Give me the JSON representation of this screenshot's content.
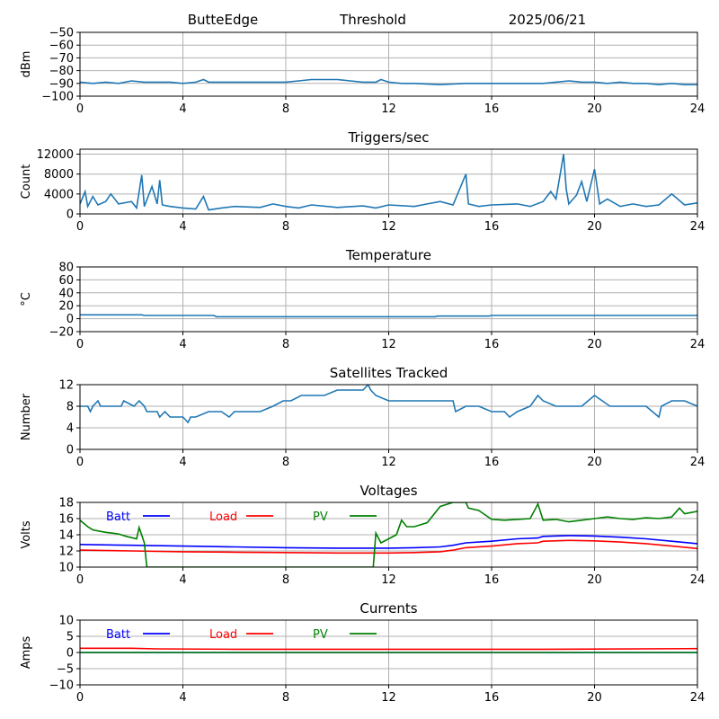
{
  "header": {
    "station": "ButteEdge",
    "plot": "Threshold",
    "date": "2025/06/21"
  },
  "colors": {
    "primary": "#1f77b4",
    "batt": "#0000ff",
    "load": "#ff0000",
    "pv": "#008000",
    "grid": "#b0b0b0"
  },
  "chart_data": [
    {
      "id": "threshold",
      "type": "line",
      "title": "",
      "ylabel": "dBm",
      "xlim": [
        0,
        24
      ],
      "xticks": [
        0,
        4,
        8,
        12,
        16,
        20,
        24
      ],
      "ylim": [
        -100,
        -50
      ],
      "yticks": [
        -100,
        -90,
        -80,
        -70,
        -60,
        -50
      ],
      "grid": true,
      "series": [
        {
          "color_key": "primary",
          "x": [
            0,
            0.5,
            1,
            1.5,
            2,
            2.5,
            3,
            3.5,
            4,
            4.5,
            4.8,
            5,
            5.5,
            6,
            7,
            8,
            8.5,
            9,
            10,
            10.5,
            11,
            11.5,
            11.7,
            12,
            12.5,
            13,
            14,
            15,
            16,
            17,
            18,
            18.5,
            19,
            19.5,
            20,
            20.5,
            21,
            21.5,
            22,
            22.5,
            23,
            23.5,
            24
          ],
          "y": [
            -89,
            -90,
            -89,
            -90,
            -88,
            -89,
            -89,
            -89,
            -90,
            -89,
            -87,
            -89,
            -89,
            -89,
            -89,
            -89,
            -88,
            -87,
            -87,
            -88,
            -89,
            -89,
            -87,
            -89,
            -90,
            -90,
            -91,
            -90,
            -90,
            -90,
            -90,
            -89,
            -88,
            -89,
            -89,
            -90,
            -89,
            -90,
            -90,
            -91,
            -90,
            -91,
            -91
          ]
        }
      ]
    },
    {
      "id": "triggers",
      "type": "line",
      "title": "Triggers/sec",
      "ylabel": "Count",
      "xlim": [
        0,
        24
      ],
      "xticks": [
        0,
        4,
        8,
        12,
        16,
        20,
        24
      ],
      "ylim": [
        0,
        13000
      ],
      "yticks": [
        0,
        4000,
        8000,
        12000
      ],
      "grid": true,
      "series": [
        {
          "color_key": "primary",
          "x": [
            0,
            0.2,
            0.3,
            0.5,
            0.7,
            1,
            1.2,
            1.5,
            2,
            2.2,
            2.4,
            2.5,
            2.8,
            3,
            3.1,
            3.2,
            3.5,
            4,
            4.5,
            4.8,
            5,
            5.5,
            6,
            7,
            7.5,
            8,
            8.5,
            9,
            10,
            11,
            11.5,
            12,
            13,
            13.5,
            14,
            14.5,
            15,
            15.1,
            15.5,
            16,
            17,
            17.5,
            18,
            18.3,
            18.5,
            18.8,
            18.9,
            19,
            19.3,
            19.5,
            19.7,
            20,
            20.2,
            20.5,
            21,
            21.5,
            22,
            22.5,
            23,
            23.5,
            24
          ],
          "y": [
            2000,
            4500,
            1500,
            3500,
            1800,
            2500,
            4000,
            2000,
            2500,
            1200,
            7800,
            1500,
            5500,
            2000,
            6800,
            1800,
            1500,
            1200,
            1000,
            3500,
            800,
            1200,
            1500,
            1300,
            2000,
            1500,
            1200,
            1800,
            1300,
            1600,
            1200,
            1800,
            1500,
            2000,
            2500,
            1800,
            8000,
            2000,
            1500,
            1800,
            2000,
            1500,
            2500,
            4500,
            3000,
            12000,
            5000,
            2000,
            3800,
            6500,
            2500,
            9000,
            2000,
            3000,
            1500,
            2000,
            1500,
            1800,
            4000,
            1800,
            2200
          ]
        }
      ]
    },
    {
      "id": "temperature",
      "type": "line",
      "title": "Temperature",
      "ylabel": "°C",
      "xlim": [
        0,
        24
      ],
      "xticks": [
        0,
        4,
        8,
        12,
        16,
        20,
        24
      ],
      "ylim": [
        -20,
        80
      ],
      "yticks": [
        -20,
        0,
        20,
        40,
        60,
        80
      ],
      "grid": true,
      "series": [
        {
          "color_key": "primary",
          "x": [
            0,
            2.4,
            2.5,
            5.2,
            5.3,
            13.8,
            13.9,
            15.9,
            16,
            24
          ],
          "y": [
            6,
            6,
            5,
            5,
            3,
            3,
            4,
            4,
            5,
            5
          ]
        }
      ]
    },
    {
      "id": "satellites",
      "type": "line",
      "title": "Satellites Tracked",
      "ylabel": "Number",
      "xlim": [
        0,
        24
      ],
      "xticks": [
        0,
        4,
        8,
        12,
        16,
        20,
        24
      ],
      "ylim": [
        0,
        12
      ],
      "yticks": [
        0,
        4,
        8,
        12
      ],
      "grid": true,
      "series": [
        {
          "color_key": "primary",
          "x": [
            0,
            0.3,
            0.4,
            0.5,
            0.7,
            0.8,
            1.6,
            1.7,
            2.1,
            2.3,
            2.5,
            2.6,
            3.0,
            3.1,
            3.3,
            3.5,
            3.8,
            4.0,
            4.2,
            4.3,
            4.5,
            5,
            5.5,
            5.8,
            6,
            7,
            7.5,
            7.9,
            8.2,
            8.6,
            9,
            9.5,
            10,
            10.5,
            11,
            11.2,
            11.3,
            11.5,
            12,
            12.5,
            13,
            14,
            14.5,
            14.6,
            15,
            15.5,
            16,
            16.5,
            16.7,
            17,
            17.5,
            17.8,
            18,
            18.5,
            19,
            19.5,
            20,
            20.3,
            20.6,
            21,
            22,
            22.5,
            22.6,
            23,
            23.5,
            24
          ],
          "y": [
            8,
            8,
            7,
            8,
            9,
            8,
            8,
            9,
            8,
            9,
            8,
            7,
            7,
            6,
            7,
            6,
            6,
            6,
            5,
            6,
            6,
            7,
            7,
            6,
            7,
            7,
            8,
            9,
            9,
            10,
            10,
            10,
            11,
            11,
            11,
            12,
            11,
            10,
            9,
            9,
            9,
            9,
            9,
            7,
            8,
            8,
            7,
            7,
            6,
            7,
            8,
            10,
            9,
            8,
            8,
            8,
            10,
            9,
            8,
            8,
            8,
            6,
            8,
            9,
            9,
            8
          ]
        }
      ]
    },
    {
      "id": "voltages",
      "type": "line",
      "title": "Voltages",
      "ylabel": "Volts",
      "xlim": [
        0,
        24
      ],
      "xticks": [
        0,
        4,
        8,
        12,
        16,
        20,
        24
      ],
      "ylim": [
        10,
        18
      ],
      "yticks": [
        10,
        12,
        14,
        16,
        18
      ],
      "grid": true,
      "series": [
        {
          "name": "Batt",
          "color_key": "batt",
          "x": [
            0,
            2,
            4,
            6,
            8,
            10,
            12,
            13,
            14,
            14.5,
            15,
            16,
            17,
            17.8,
            18,
            19,
            20,
            21,
            22,
            23,
            24
          ],
          "y": [
            12.8,
            12.7,
            12.6,
            12.5,
            12.4,
            12.35,
            12.35,
            12.4,
            12.5,
            12.7,
            13.0,
            13.2,
            13.5,
            13.6,
            13.8,
            13.9,
            13.85,
            13.7,
            13.5,
            13.2,
            12.9
          ]
        },
        {
          "name": "Load",
          "color_key": "load",
          "x": [
            0,
            2,
            4,
            6,
            8,
            10,
            12,
            13,
            14,
            14.5,
            15,
            16,
            17,
            17.8,
            18,
            19,
            20,
            21,
            22,
            23,
            24
          ],
          "y": [
            12.1,
            12.0,
            11.9,
            11.85,
            11.8,
            11.75,
            11.75,
            11.8,
            11.9,
            12.1,
            12.4,
            12.6,
            12.9,
            13.0,
            13.2,
            13.3,
            13.25,
            13.1,
            12.9,
            12.6,
            12.3
          ]
        },
        {
          "name": "PV",
          "color_key": "pv",
          "x": [
            0,
            0.3,
            0.5,
            1,
            1.5,
            1.8,
            2.2,
            2.3,
            2.5,
            2.6,
            11.4,
            11.5,
            11.7,
            12,
            12.3,
            12.5,
            12.7,
            13,
            13.5,
            14,
            14.5,
            15,
            15.1,
            15.5,
            16,
            16.5,
            17,
            17.5,
            17.8,
            18,
            18.5,
            19,
            19.5,
            20,
            20.5,
            21,
            21.5,
            22,
            22.5,
            23,
            23.3,
            23.5,
            24
          ],
          "y": [
            15.8,
            15.0,
            14.6,
            14.3,
            14.1,
            13.8,
            13.5,
            14.9,
            13.0,
            10.0,
            10.0,
            14.2,
            13.0,
            13.5,
            14.0,
            15.8,
            15.0,
            15.0,
            15.5,
            17.5,
            18.0,
            18.0,
            17.3,
            17.0,
            15.9,
            15.8,
            15.9,
            16.0,
            17.8,
            15.8,
            15.9,
            15.6,
            15.8,
            16.0,
            16.2,
            16.0,
            15.9,
            16.1,
            16.0,
            16.2,
            17.3,
            16.6,
            16.9
          ]
        }
      ]
    },
    {
      "id": "currents",
      "type": "line",
      "title": "Currents",
      "ylabel": "Amps",
      "xlim": [
        0,
        24
      ],
      "xticks": [
        0,
        4,
        8,
        12,
        16,
        20,
        24
      ],
      "ylim": [
        -10,
        10
      ],
      "yticks": [
        -10,
        -5,
        0,
        5,
        10
      ],
      "grid": true,
      "series": [
        {
          "name": "Batt",
          "color_key": "batt",
          "x": [
            0,
            24
          ],
          "y": [
            0,
            0
          ]
        },
        {
          "name": "Load",
          "color_key": "load",
          "x": [
            0,
            2,
            3,
            6,
            12,
            18,
            24
          ],
          "y": [
            1.3,
            1.3,
            1.1,
            1.0,
            1.0,
            1.0,
            1.2
          ]
        },
        {
          "name": "PV",
          "color_key": "pv",
          "x": [
            0,
            24
          ],
          "y": [
            0,
            0
          ]
        }
      ]
    }
  ]
}
